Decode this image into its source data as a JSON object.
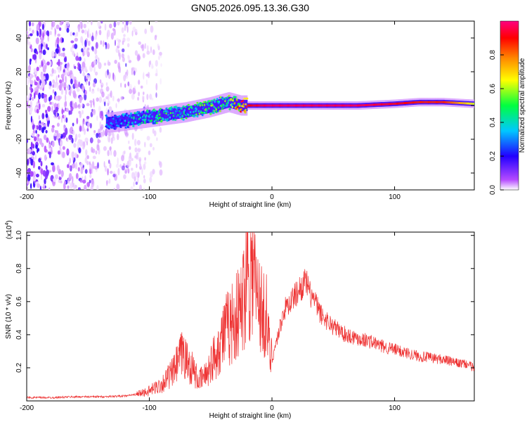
{
  "title": "GN05.2026.095.13.36.G30",
  "chart_data": [
    {
      "type": "heatmap",
      "xlabel": "Height of straight line (km)",
      "ylabel": "Frequency (Hz)",
      "xlim": [
        -200,
        165
      ],
      "ylim": [
        -50,
        50
      ],
      "x_ticks": [
        -200,
        -100,
        0,
        100
      ],
      "x_tick_labels": [
        "-200",
        "-100",
        "0",
        "100"
      ],
      "y_ticks": [
        -40,
        -20,
        0,
        20,
        40
      ],
      "y_tick_labels": [
        "-40",
        "-20",
        "0",
        "20",
        "40"
      ],
      "ridge": {
        "x": [
          -130,
          -110,
          -90,
          -70,
          -50,
          -35,
          -25,
          -15,
          -5,
          5,
          40,
          70,
          100,
          120,
          140,
          165
        ],
        "y": [
          -10,
          -8,
          -6,
          -4,
          -1,
          2,
          0,
          0,
          0,
          0,
          0,
          0,
          1,
          2,
          2,
          1
        ],
        "amplitude": [
          0.3,
          0.4,
          0.45,
          0.45,
          0.5,
          0.5,
          0.8,
          0.9,
          0.95,
          0.95,
          0.95,
          0.95,
          0.9,
          0.85,
          0.85,
          0.6
        ]
      },
      "noise_region_x": [
        -200,
        -100
      ],
      "colorbar": {
        "label": "Normalized spectral amplitude",
        "range": [
          0,
          1
        ],
        "ticks": [
          0.0,
          0.2,
          0.4,
          0.6,
          0.8
        ],
        "tick_labels": [
          "0.0",
          "0.2",
          "0.4",
          "0.6",
          "0.8"
        ],
        "colors": [
          "#ffffff",
          "#b54bff",
          "#2200ff",
          "#00c8ff",
          "#00ff40",
          "#ffff00",
          "#ff8800",
          "#ff0000",
          "#ff0080"
        ]
      }
    },
    {
      "type": "line",
      "xlabel": "Height of straight line (km)",
      "ylabel": "SNR (10 * v/v)",
      "y_multiplier": "(x10",
      "y_multiplier_exp": "4",
      "y_multiplier_close": ")",
      "xlim": [
        -200,
        165
      ],
      "ylim": [
        0,
        1.02
      ],
      "x_ticks": [
        -200,
        -100,
        0,
        100
      ],
      "x_tick_labels": [
        "-200",
        "-100",
        "0",
        "100"
      ],
      "y_ticks": [
        0.2,
        0.4,
        0.6,
        0.8,
        1.0
      ],
      "y_tick_labels": [
        "0.2",
        "0.4",
        "0.6",
        "0.8",
        "1.0"
      ],
      "series": [
        {
          "name": "SNR",
          "color": "#ee3333",
          "x": [
            -200,
            -180,
            -160,
            -140,
            -120,
            -110,
            -100,
            -90,
            -80,
            -75,
            -72,
            -70,
            -65,
            -60,
            -55,
            -50,
            -45,
            -40,
            -35,
            -30,
            -25,
            -22,
            -20,
            -18,
            -15,
            -12,
            -10,
            -8,
            -5,
            -2,
            0,
            5,
            10,
            15,
            20,
            25,
            28,
            30,
            35,
            40,
            50,
            60,
            70,
            80,
            90,
            100,
            110,
            120,
            130,
            140,
            150,
            160,
            165
          ],
          "y": [
            0.02,
            0.02,
            0.025,
            0.025,
            0.03,
            0.04,
            0.06,
            0.1,
            0.18,
            0.26,
            0.3,
            0.24,
            0.2,
            0.12,
            0.15,
            0.22,
            0.3,
            0.4,
            0.45,
            0.5,
            0.55,
            0.7,
            0.9,
            0.75,
            0.8,
            0.6,
            0.65,
            0.5,
            0.55,
            0.3,
            0.25,
            0.4,
            0.55,
            0.6,
            0.65,
            0.7,
            0.72,
            0.66,
            0.6,
            0.52,
            0.45,
            0.4,
            0.38,
            0.36,
            0.33,
            0.31,
            0.29,
            0.27,
            0.26,
            0.25,
            0.23,
            0.22,
            0.2
          ]
        }
      ]
    }
  ]
}
